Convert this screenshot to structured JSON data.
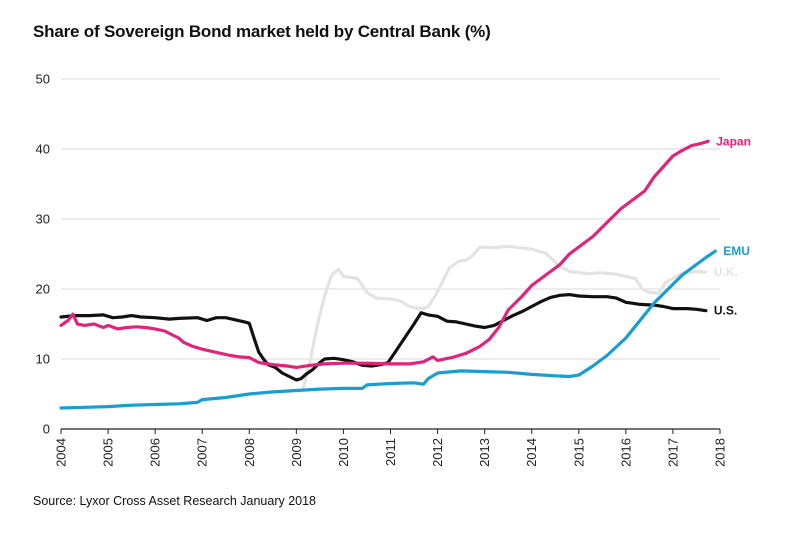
{
  "chart_data": {
    "type": "line",
    "title": "Share of Sovereign Bond market held by Central Bank (%)",
    "source": "Source: Lyxor Cross Asset Research January 2018",
    "xlabel": "",
    "ylabel": "",
    "xlim": [
      2004,
      2018
    ],
    "ylim": [
      0,
      50
    ],
    "yticks": [
      0,
      10,
      20,
      30,
      40,
      50
    ],
    "xticks": [
      "2004",
      "2005",
      "2006",
      "2007",
      "2008",
      "2009",
      "2010",
      "2011",
      "2012",
      "2013",
      "2014",
      "2015",
      "2016",
      "2017",
      "2018"
    ],
    "grid": "horizontal",
    "series": [
      {
        "name": "U.K.",
        "color": "#e3e3e3",
        "points": [
          [
            2009.15,
            5.8
          ],
          [
            2009.3,
            10
          ],
          [
            2009.45,
            15
          ],
          [
            2009.6,
            19
          ],
          [
            2009.75,
            22
          ],
          [
            2009.9,
            22.8
          ],
          [
            2010.0,
            21.8
          ],
          [
            2010.3,
            21.5
          ],
          [
            2010.5,
            19.5
          ],
          [
            2010.7,
            18.7
          ],
          [
            2011.0,
            18.6
          ],
          [
            2011.2,
            18.3
          ],
          [
            2011.4,
            17.5
          ],
          [
            2011.55,
            17.3
          ],
          [
            2011.7,
            17.2
          ],
          [
            2011.8,
            17.5
          ],
          [
            2011.95,
            19
          ],
          [
            2012.1,
            21
          ],
          [
            2012.25,
            23
          ],
          [
            2012.45,
            24
          ],
          [
            2012.6,
            24.1
          ],
          [
            2012.75,
            24.8
          ],
          [
            2012.9,
            26
          ],
          [
            2013.2,
            25.9
          ],
          [
            2013.5,
            26.1
          ],
          [
            2014.0,
            25.7
          ],
          [
            2014.3,
            25.1
          ],
          [
            2014.6,
            23.2
          ],
          [
            2014.8,
            22.5
          ],
          [
            2015.2,
            22.2
          ],
          [
            2015.5,
            22.3
          ],
          [
            2015.8,
            22.1
          ],
          [
            2016.2,
            21.5
          ],
          [
            2016.35,
            20
          ],
          [
            2016.5,
            19.5
          ],
          [
            2016.7,
            19.4
          ],
          [
            2016.85,
            21
          ],
          [
            2017.0,
            21.5
          ],
          [
            2017.2,
            22.3
          ],
          [
            2017.5,
            22.5
          ],
          [
            2017.7,
            22.4
          ]
        ]
      },
      {
        "name": "U.S.",
        "color": "#111111",
        "points": [
          [
            2004.0,
            16.0
          ],
          [
            2004.3,
            16.2
          ],
          [
            2004.6,
            16.2
          ],
          [
            2004.9,
            16.3
          ],
          [
            2005.1,
            15.9
          ],
          [
            2005.3,
            16.0
          ],
          [
            2005.5,
            16.2
          ],
          [
            2005.7,
            16.0
          ],
          [
            2006.0,
            15.9
          ],
          [
            2006.3,
            15.7
          ],
          [
            2006.5,
            15.8
          ],
          [
            2006.9,
            15.9
          ],
          [
            2007.1,
            15.5
          ],
          [
            2007.3,
            15.9
          ],
          [
            2007.5,
            15.9
          ],
          [
            2007.7,
            15.6
          ],
          [
            2007.9,
            15.3
          ],
          [
            2008.0,
            15.1
          ],
          [
            2008.1,
            13
          ],
          [
            2008.2,
            11
          ],
          [
            2008.3,
            10
          ],
          [
            2008.4,
            9.2
          ],
          [
            2008.55,
            8.8
          ],
          [
            2008.7,
            8
          ],
          [
            2008.85,
            7.5
          ],
          [
            2009.0,
            7.0
          ],
          [
            2009.1,
            7.2
          ],
          [
            2009.2,
            7.8
          ],
          [
            2009.35,
            8.5
          ],
          [
            2009.5,
            9.5
          ],
          [
            2009.6,
            10
          ],
          [
            2009.8,
            10.1
          ],
          [
            2010.0,
            9.9
          ],
          [
            2010.2,
            9.6
          ],
          [
            2010.4,
            9.1
          ],
          [
            2010.6,
            9.0
          ],
          [
            2010.8,
            9.2
          ],
          [
            2010.95,
            9.5
          ],
          [
            2011.1,
            11
          ],
          [
            2011.3,
            13
          ],
          [
            2011.5,
            15
          ],
          [
            2011.65,
            16.6
          ],
          [
            2011.8,
            16.3
          ],
          [
            2012.0,
            16.1
          ],
          [
            2012.2,
            15.4
          ],
          [
            2012.4,
            15.3
          ],
          [
            2012.6,
            15.0
          ],
          [
            2012.8,
            14.7
          ],
          [
            2013.0,
            14.5
          ],
          [
            2013.2,
            14.8
          ],
          [
            2013.4,
            15.5
          ],
          [
            2013.6,
            16.2
          ],
          [
            2013.8,
            16.8
          ],
          [
            2014.0,
            17.5
          ],
          [
            2014.2,
            18.2
          ],
          [
            2014.4,
            18.8
          ],
          [
            2014.6,
            19.1
          ],
          [
            2014.8,
            19.2
          ],
          [
            2015.0,
            19.0
          ],
          [
            2015.3,
            18.9
          ],
          [
            2015.6,
            18.9
          ],
          [
            2015.8,
            18.7
          ],
          [
            2016.0,
            18.1
          ],
          [
            2016.3,
            17.8
          ],
          [
            2016.6,
            17.7
          ],
          [
            2016.8,
            17.5
          ],
          [
            2017.0,
            17.2
          ],
          [
            2017.3,
            17.2
          ],
          [
            2017.5,
            17.1
          ],
          [
            2017.7,
            16.9
          ]
        ]
      },
      {
        "name": "Japan",
        "color": "#e0247a",
        "points": [
          [
            2004.0,
            14.8
          ],
          [
            2004.15,
            15.5
          ],
          [
            2004.25,
            16.4
          ],
          [
            2004.35,
            15.0
          ],
          [
            2004.5,
            14.8
          ],
          [
            2004.7,
            15.0
          ],
          [
            2004.9,
            14.5
          ],
          [
            2005.0,
            14.8
          ],
          [
            2005.2,
            14.3
          ],
          [
            2005.4,
            14.5
          ],
          [
            2005.6,
            14.6
          ],
          [
            2005.8,
            14.5
          ],
          [
            2006.0,
            14.3
          ],
          [
            2006.2,
            14.0
          ],
          [
            2006.35,
            13.5
          ],
          [
            2006.5,
            13.0
          ],
          [
            2006.6,
            12.4
          ],
          [
            2006.8,
            11.8
          ],
          [
            2007.0,
            11.4
          ],
          [
            2007.2,
            11.1
          ],
          [
            2007.4,
            10.8
          ],
          [
            2007.6,
            10.5
          ],
          [
            2007.8,
            10.3
          ],
          [
            2008.0,
            10.2
          ],
          [
            2008.2,
            9.5
          ],
          [
            2008.5,
            9.2
          ],
          [
            2008.8,
            9.0
          ],
          [
            2009.0,
            8.8
          ],
          [
            2009.3,
            9.1
          ],
          [
            2009.6,
            9.3
          ],
          [
            2010.0,
            9.4
          ],
          [
            2010.5,
            9.4
          ],
          [
            2011.0,
            9.3
          ],
          [
            2011.4,
            9.3
          ],
          [
            2011.7,
            9.6
          ],
          [
            2011.9,
            10.3
          ],
          [
            2012.0,
            9.8
          ],
          [
            2012.3,
            10.2
          ],
          [
            2012.6,
            10.8
          ],
          [
            2012.9,
            11.8
          ],
          [
            2013.1,
            12.8
          ],
          [
            2013.3,
            14.5
          ],
          [
            2013.5,
            17
          ],
          [
            2013.8,
            19
          ],
          [
            2014.0,
            20.5
          ],
          [
            2014.3,
            22
          ],
          [
            2014.6,
            23.5
          ],
          [
            2014.8,
            25
          ],
          [
            2015.0,
            26
          ],
          [
            2015.3,
            27.5
          ],
          [
            2015.6,
            29.5
          ],
          [
            2015.9,
            31.5
          ],
          [
            2016.1,
            32.5
          ],
          [
            2016.4,
            34
          ],
          [
            2016.6,
            36
          ],
          [
            2016.8,
            37.5
          ],
          [
            2017.0,
            39
          ],
          [
            2017.2,
            39.8
          ],
          [
            2017.4,
            40.5
          ],
          [
            2017.6,
            40.8
          ],
          [
            2017.75,
            41.1
          ]
        ]
      },
      {
        "name": "EMU",
        "color": "#1a9dcf",
        "points": [
          [
            2004.0,
            3.0
          ],
          [
            2004.5,
            3.1
          ],
          [
            2005.0,
            3.2
          ],
          [
            2005.5,
            3.4
          ],
          [
            2006.0,
            3.5
          ],
          [
            2006.5,
            3.6
          ],
          [
            2006.9,
            3.8
          ],
          [
            2007.0,
            4.2
          ],
          [
            2007.5,
            4.5
          ],
          [
            2008.0,
            5.0
          ],
          [
            2008.5,
            5.3
          ],
          [
            2009.0,
            5.5
          ],
          [
            2009.5,
            5.7
          ],
          [
            2010.0,
            5.8
          ],
          [
            2010.4,
            5.8
          ],
          [
            2010.5,
            6.3
          ],
          [
            2011.0,
            6.5
          ],
          [
            2011.5,
            6.6
          ],
          [
            2011.7,
            6.4
          ],
          [
            2011.8,
            7.2
          ],
          [
            2012.0,
            8.0
          ],
          [
            2012.5,
            8.3
          ],
          [
            2013.0,
            8.2
          ],
          [
            2013.5,
            8.1
          ],
          [
            2014.0,
            7.8
          ],
          [
            2014.5,
            7.6
          ],
          [
            2014.8,
            7.5
          ],
          [
            2015.0,
            7.7
          ],
          [
            2015.3,
            9
          ],
          [
            2015.6,
            10.5
          ],
          [
            2016.0,
            13
          ],
          [
            2016.3,
            15.5
          ],
          [
            2016.6,
            18
          ],
          [
            2016.9,
            20
          ],
          [
            2017.2,
            22
          ],
          [
            2017.5,
            23.5
          ],
          [
            2017.7,
            24.5
          ],
          [
            2017.9,
            25.4
          ]
        ]
      }
    ]
  }
}
